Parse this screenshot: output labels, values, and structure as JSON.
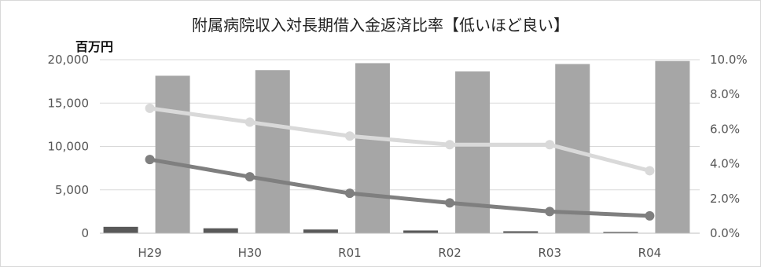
{
  "chart_data": {
    "type": "bar",
    "title": "附属病院収入対長期借入金返済比率【低いほど良い】",
    "left_axis_unit": "百万円",
    "categories": [
      "H29",
      "H30",
      "R01",
      "R02",
      "R03",
      "R04"
    ],
    "left_axis": {
      "min": 0,
      "max": 20000,
      "ticks": [
        0,
        5000,
        10000,
        15000,
        20000
      ],
      "tick_labels": [
        "0",
        "5,000",
        "10,000",
        "15,000",
        "20,000"
      ]
    },
    "right_axis": {
      "min": 0,
      "max": 10,
      "ticks": [
        0,
        2,
        4,
        6,
        8,
        10
      ],
      "tick_labels": [
        "0.0%",
        "2.0%",
        "4.0%",
        "6.0%",
        "8.0%",
        "10.0%"
      ]
    },
    "bar_series": [
      {
        "color": "#595959",
        "values": [
          740,
          570,
          430,
          320,
          230,
          150
        ]
      },
      {
        "color": "#a6a6a6",
        "values": [
          18150,
          18800,
          19600,
          18650,
          19500,
          19850
        ]
      }
    ],
    "line_series": [
      {
        "color": "#d9d9d9",
        "values": [
          7.2,
          6.4,
          5.6,
          5.1,
          5.1,
          3.6
        ]
      },
      {
        "color": "#7f7f7f",
        "values": [
          4.25,
          3.25,
          2.3,
          1.75,
          1.25,
          1.0
        ]
      }
    ],
    "grid": true,
    "legend": "none"
  }
}
